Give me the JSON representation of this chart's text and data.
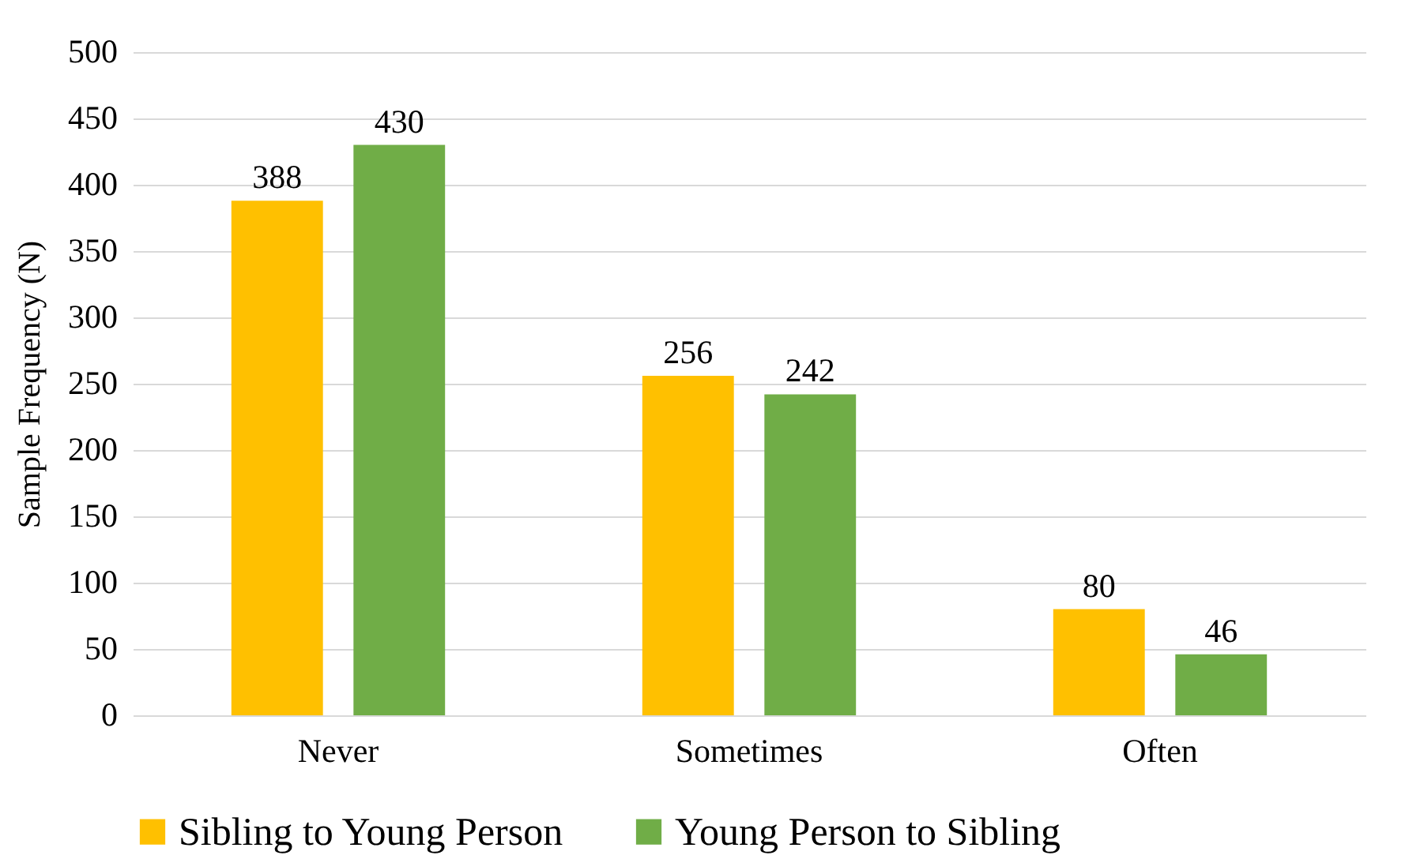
{
  "chart_data": {
    "type": "bar",
    "ylabel": "Sample Frequency (N)",
    "categories": [
      "Never",
      "Sometimes",
      "Often"
    ],
    "series": [
      {
        "name": "Sibling to Young Person",
        "color": "#ffc000",
        "values": [
          388,
          256,
          80
        ]
      },
      {
        "name": "Young Person to Sibling",
        "color": "#70ad47",
        "values": [
          430,
          242,
          46
        ]
      }
    ],
    "ylim": [
      0,
      500
    ],
    "yticks": [
      0,
      50,
      100,
      150,
      200,
      250,
      300,
      350,
      400,
      450,
      500
    ],
    "grid": "y",
    "legend": "bottom",
    "data_labels": true
  }
}
